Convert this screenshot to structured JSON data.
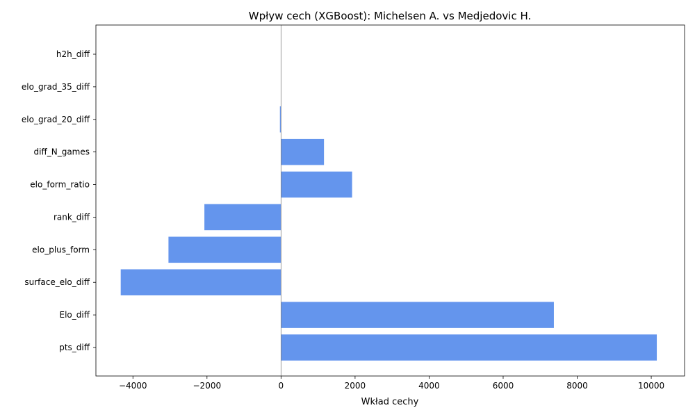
{
  "chart_data": {
    "type": "bar",
    "orientation": "horizontal",
    "title": "Wpływ cech (XGBoost): Michelsen A. vs Medjedovic H.",
    "xlabel": "Wkład cechy",
    "ylabel": "",
    "categories": [
      "pts_diff",
      "Elo_diff",
      "surface_elo_diff",
      "elo_plus_form",
      "rank_diff",
      "elo_form_ratio",
      "diff_N_games",
      "elo_grad_20_diff",
      "elo_grad_35_diff",
      "h2h_diff"
    ],
    "values": [
      10150,
      7370,
      -4330,
      -3040,
      -2070,
      1920,
      1160,
      -30,
      0,
      0
    ],
    "xlim": [
      -5000,
      10900
    ],
    "xticks": [
      -4000,
      -2000,
      0,
      2000,
      4000,
      6000,
      8000,
      10000
    ],
    "xtick_labels": [
      "−4000",
      "−2000",
      "0",
      "2000",
      "4000",
      "6000",
      "8000",
      "10000"
    ],
    "bar_color": "#6495ED",
    "zero_line": true,
    "grid": false
  }
}
